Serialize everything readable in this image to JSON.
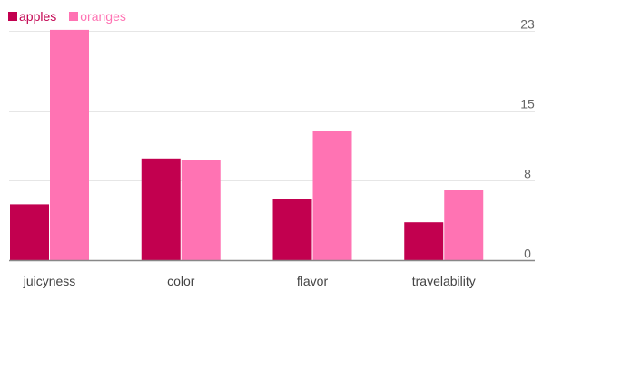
{
  "chart_data": {
    "type": "bar",
    "categories": [
      "juicyness",
      "color",
      "flavor",
      "travelability"
    ],
    "series": [
      {
        "name": "apples",
        "values": [
          5.6,
          10.2,
          6.1,
          3.8
        ],
        "color": "#c2004f"
      },
      {
        "name": "oranges",
        "values": [
          23.1,
          10.0,
          13.0,
          7.0
        ],
        "color": "#ff73b3"
      }
    ],
    "yticks": [
      0,
      8,
      15,
      23
    ],
    "ylim": [
      0,
      24
    ],
    "grid": true,
    "legend": "top-left",
    "axis_side": "right"
  }
}
